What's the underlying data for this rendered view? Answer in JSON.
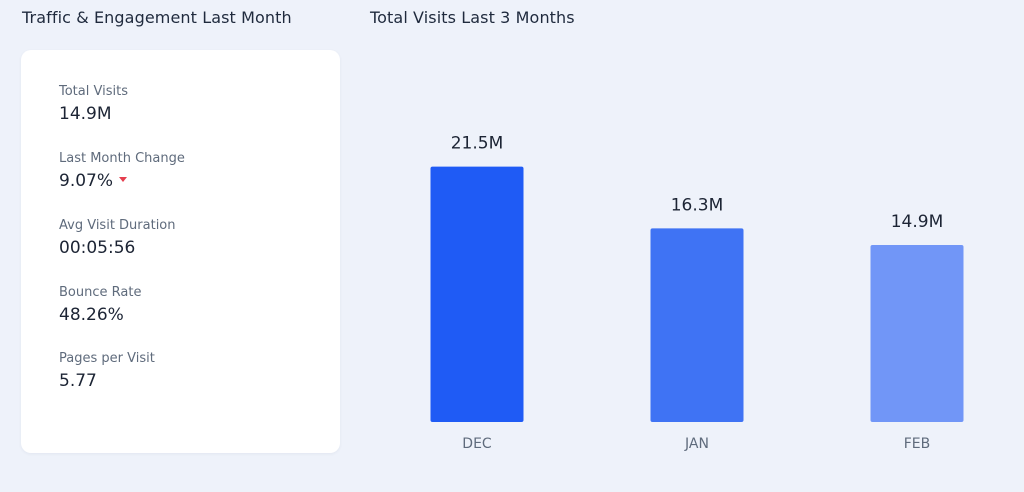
{
  "left_panel": {
    "title": "Traffic & Engagement Last Month",
    "stats": [
      {
        "label": "Total Visits",
        "value": "14.9M"
      },
      {
        "label": "Last Month Change",
        "value": "9.07%",
        "trend": "down",
        "trend_color": "#e53e4e"
      },
      {
        "label": "Avg Visit Duration",
        "value": "00:05:56"
      },
      {
        "label": "Bounce Rate",
        "value": "48.26%"
      },
      {
        "label": "Pages per Visit",
        "value": "5.77"
      }
    ]
  },
  "chart_data": {
    "type": "bar",
    "title": "Total Visits Last 3 Months",
    "categories": [
      "DEC",
      "JAN",
      "FEB"
    ],
    "values": [
      21.5,
      16.3,
      14.9
    ],
    "unit": "M",
    "data_labels": [
      "21.5M",
      "16.3M",
      "14.9M"
    ],
    "bar_colors": [
      "#1f5bf5",
      "#3f73f4",
      "#7196f7"
    ],
    "ylim": [
      0,
      25
    ],
    "grid": false,
    "legend": "none"
  }
}
